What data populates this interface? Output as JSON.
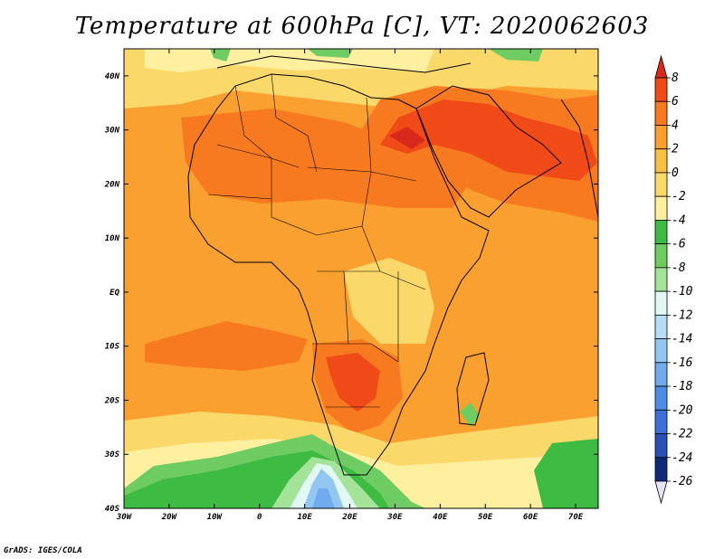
{
  "title": "Temperature at 600hPa [C], VT: 2020062603",
  "footer": "GrADS: IGES/COLA",
  "map": {
    "lat_labels": [
      "40N",
      "30N",
      "20N",
      "10N",
      "EQ",
      "10S",
      "20S",
      "30S",
      "40S"
    ],
    "lon_labels": [
      "30W",
      "20W",
      "10W",
      "0",
      "10E",
      "20E",
      "30E",
      "40E",
      "50E",
      "60E",
      "70E"
    ],
    "lat_range": [
      -40,
      45
    ],
    "lon_range": [
      -30,
      75
    ]
  },
  "colorbar": {
    "labels": [
      "8",
      "6",
      "4",
      "2",
      "0",
      "-2",
      "-4",
      "-6",
      "-8",
      "-10",
      "-12",
      "-14",
      "-16",
      "-18",
      "-20",
      "-22",
      "-24",
      "-26"
    ],
    "colors": [
      "#d9291c",
      "#f04a18",
      "#f87a20",
      "#f9a030",
      "#f9bf45",
      "#fbd86a",
      "#fff0a0",
      "#3dbb43",
      "#6fcc62",
      "#a4e39a",
      "#e1f8f4",
      "#b6dcf6",
      "#94c6f4",
      "#6fabee",
      "#4d8be4",
      "#3a70d8",
      "#2a50b8",
      "#0f2a7a",
      "#e4e4f8"
    ]
  }
}
